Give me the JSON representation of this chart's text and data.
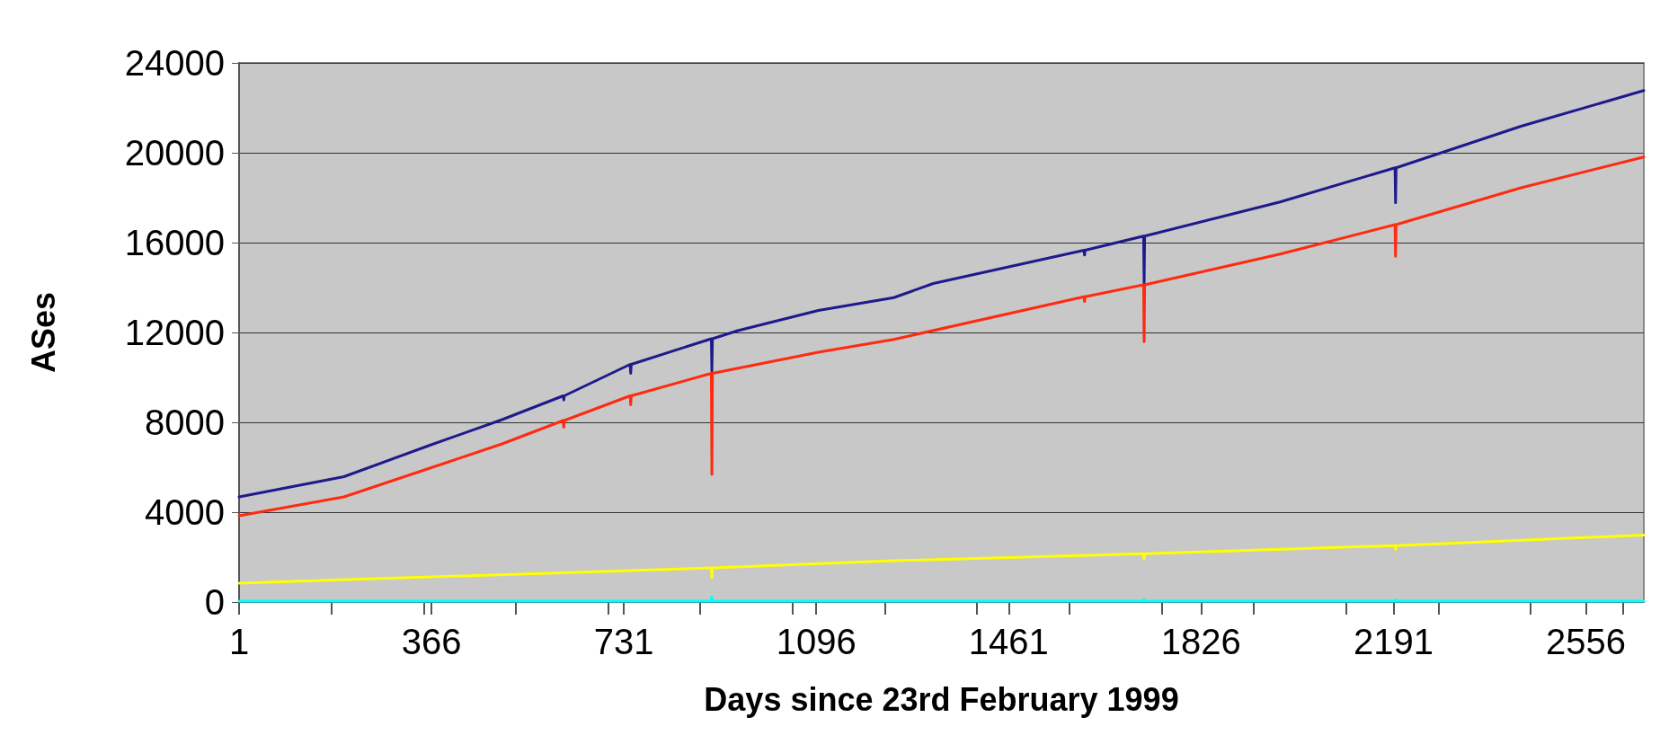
{
  "chart_data": {
    "type": "line",
    "xlabel": "Days since 23rd February 1999",
    "ylabel": "ASes",
    "xlim": [
      1,
      2666
    ],
    "xticks": [
      1,
      {
        "value": 176,
        "label": null
      },
      {
        "value": 351,
        "label": null
      },
      366,
      {
        "value": 526,
        "label": null
      },
      {
        "value": 701,
        "label": null
      },
      731,
      {
        "value": 876,
        "label": null
      },
      {
        "value": 1051,
        "label": null
      },
      1096,
      {
        "value": 1226,
        "label": null
      },
      {
        "value": 1401,
        "label": null
      },
      1461,
      {
        "value": 1576,
        "label": null
      },
      {
        "value": 1751,
        "label": null
      },
      1826,
      {
        "value": 1926,
        "label": null
      },
      {
        "value": 2101,
        "label": null
      },
      2191,
      {
        "value": 2276,
        "label": null
      },
      {
        "value": 2451,
        "label": null
      },
      2556,
      {
        "value": 2626,
        "label": null
      }
    ],
    "ylim": [
      0,
      24000
    ],
    "yticks": [
      0,
      4000,
      8000,
      12000,
      16000,
      20000,
      24000
    ],
    "grid": "y",
    "marker": "none",
    "line_style": "solid",
    "series": [
      {
        "color": "#1f1a8c",
        "x": [
          1,
          200,
          363,
          500,
          616,
          617,
          618,
          743,
          744,
          745,
          897,
          898,
          899,
          947,
          1100,
          1243,
          1318,
          1604,
          1605,
          1606,
          1717,
          1718,
          1719,
          1976,
          2194,
          2195,
          2196,
          2433,
          2666
        ],
        "values": [
          4680,
          5580,
          6980,
          8120,
          9180,
          9000,
          9180,
          10580,
          10180,
          10580,
          11720,
          10280,
          11720,
          12080,
          12980,
          13550,
          14180,
          15660,
          15450,
          15660,
          16290,
          14180,
          16290,
          17810,
          19330,
          17770,
          19330,
          21180,
          22770
        ]
      },
      {
        "color": "#ff2a10",
        "x": [
          1,
          200,
          363,
          500,
          616,
          617,
          618,
          743,
          744,
          745,
          897,
          898,
          899,
          1100,
          1243,
          1604,
          1605,
          1606,
          1717,
          1718,
          1719,
          1976,
          2194,
          2195,
          2196,
          2433,
          2666
        ],
        "values": [
          3840,
          4680,
          5960,
          7040,
          8080,
          7780,
          8080,
          9180,
          8780,
          9180,
          10180,
          5680,
          10180,
          11120,
          11690,
          13590,
          13380,
          13590,
          14120,
          11590,
          14120,
          15490,
          16800,
          15390,
          16800,
          18440,
          19810
        ]
      },
      {
        "color": "#ffff00",
        "x": [
          1,
          897,
          898,
          899,
          1243,
          1717,
          1718,
          1719,
          2194,
          2195,
          2196,
          2666
        ],
        "values": [
          840,
          1520,
          1080,
          1520,
          1840,
          2150,
          1920,
          2150,
          2510,
          2340,
          2510,
          2980
        ]
      },
      {
        "color": "#00ffff",
        "x": [
          1,
          897,
          898,
          899,
          1717,
          1718,
          1719,
          2194,
          2195,
          2196,
          2666
        ],
        "values": [
          40,
          40,
          240,
          40,
          40,
          120,
          40,
          40,
          100,
          40,
          40
        ]
      }
    ]
  }
}
